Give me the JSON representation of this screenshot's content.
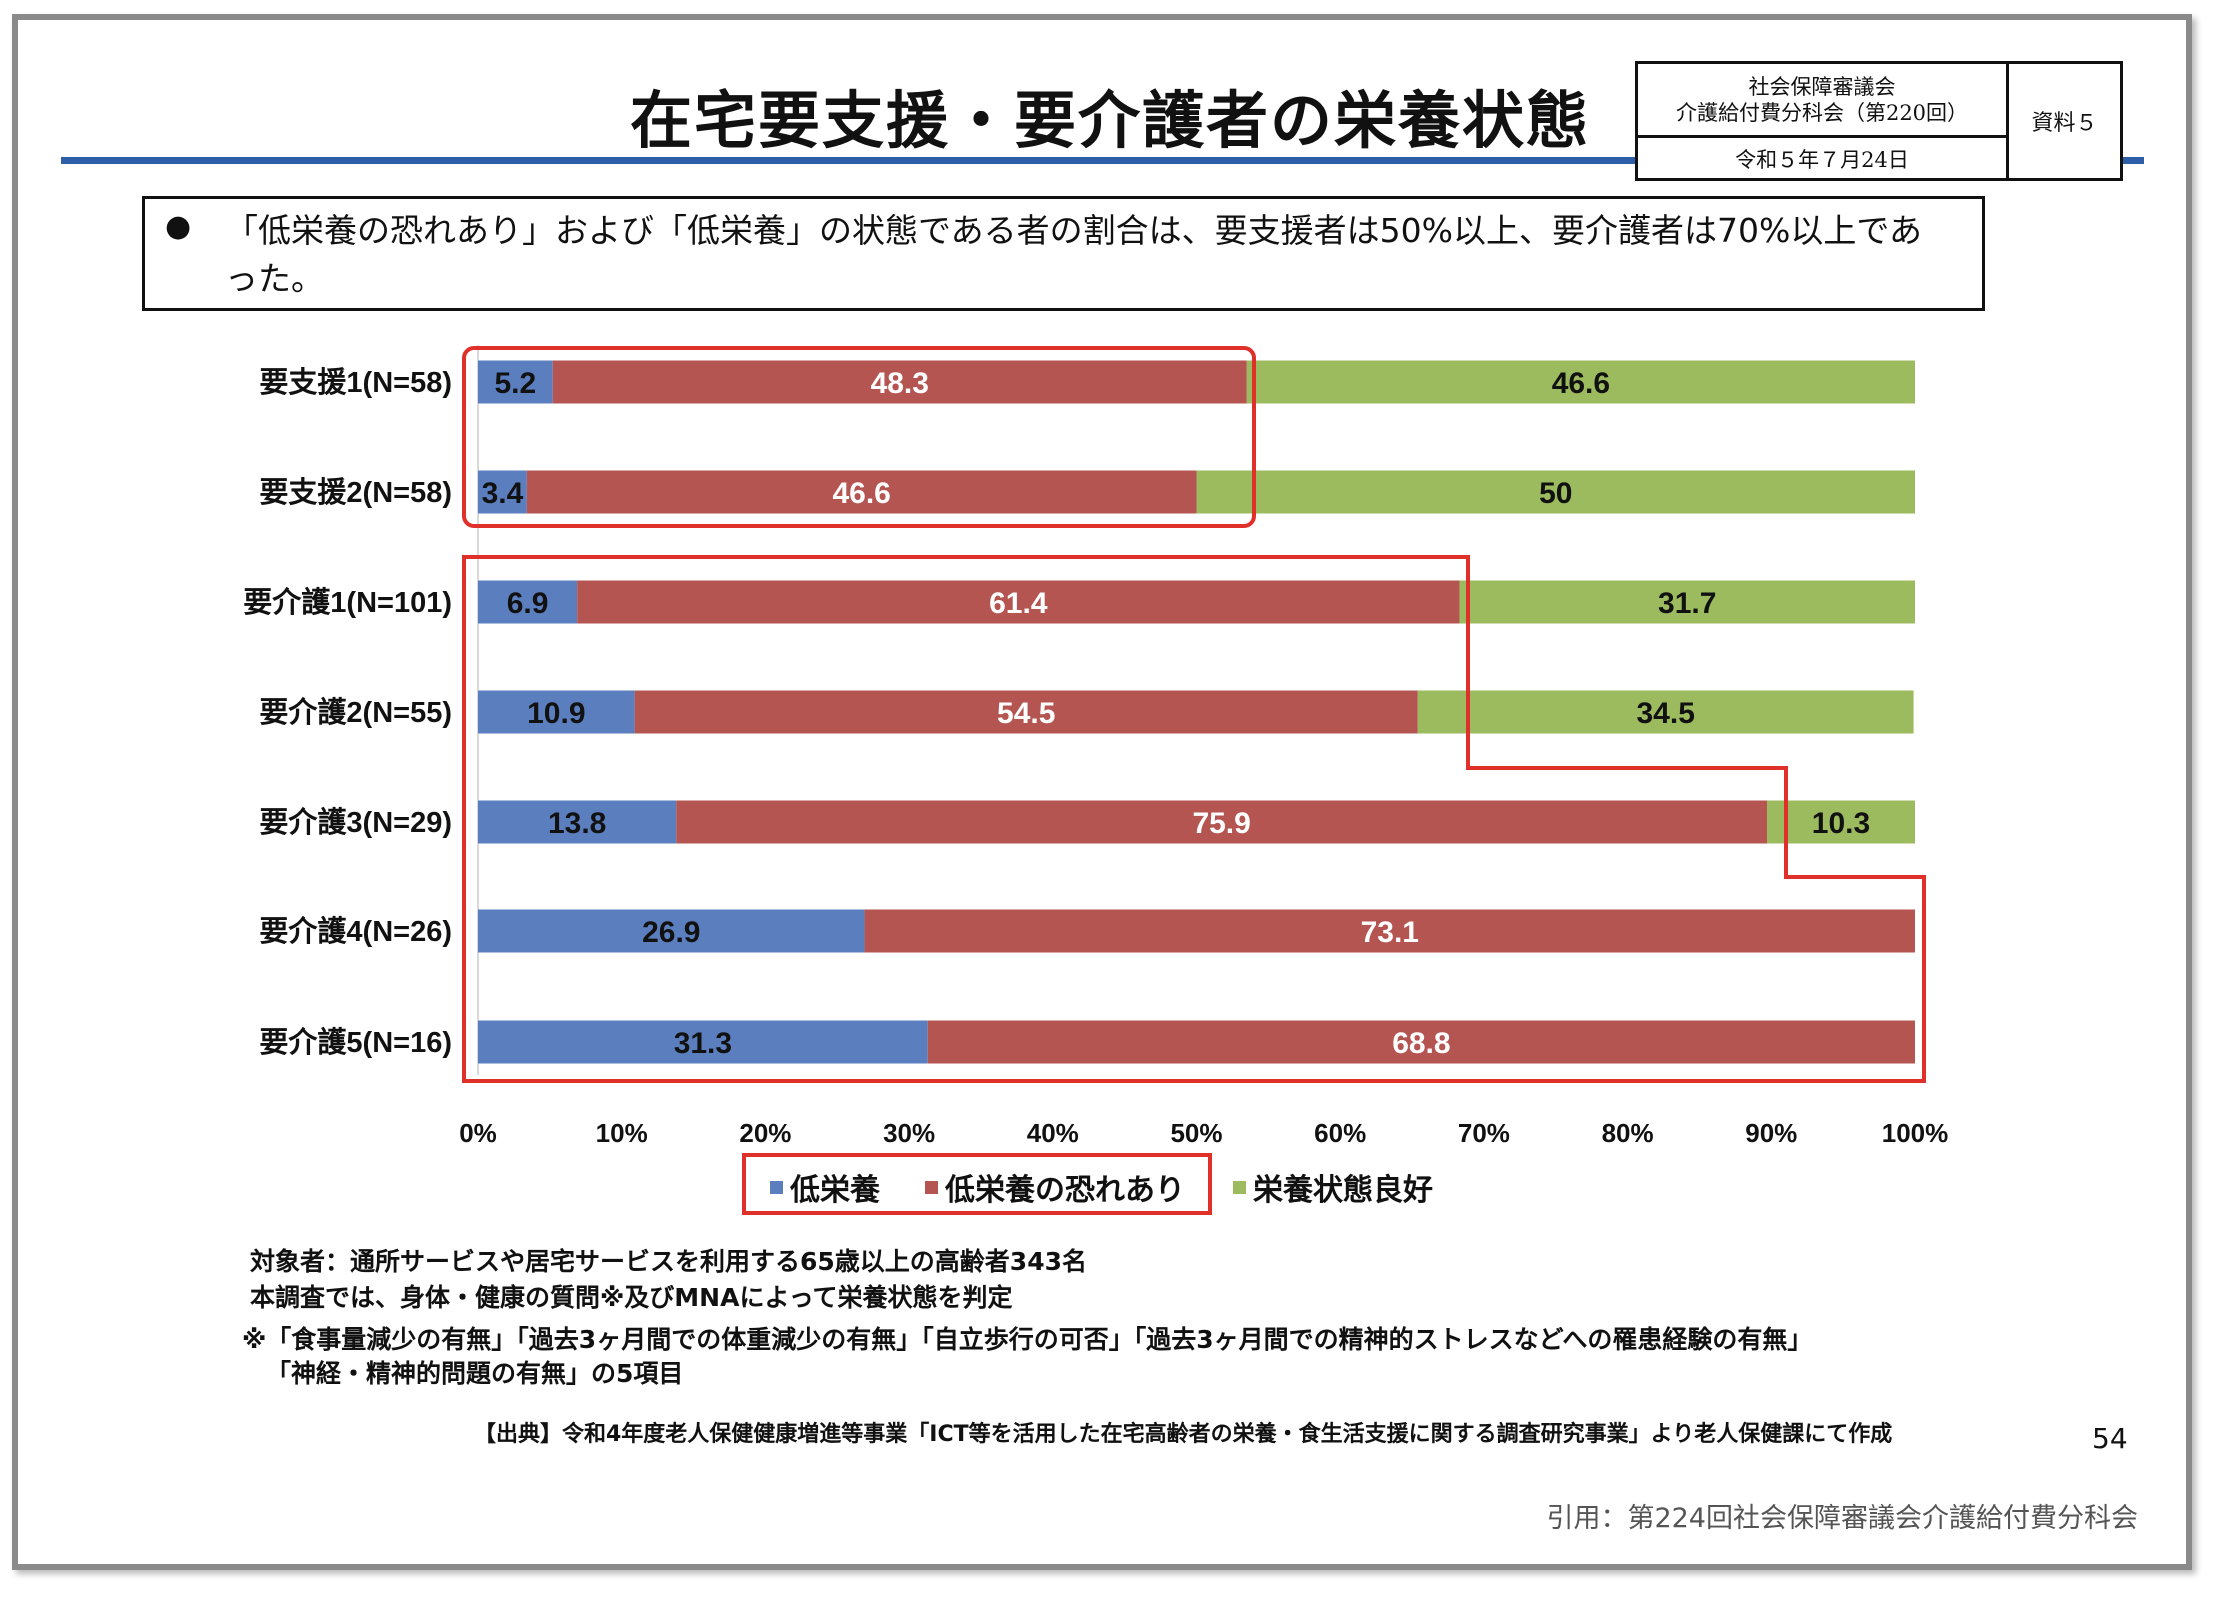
{
  "title": "在宅要支援・要介護者の栄養状態",
  "info_box": {
    "line1": "社会保障審議会",
    "line2": "介護給付費分科会（第220回）",
    "date": "令和５年７月24日",
    "doc": "資料５"
  },
  "summary": {
    "bullet": "●",
    "text": "「低栄養の恐れあり」および「低栄養」の状態である者の割合は、要支援者は50%以上、要介護者は70%以上であった。"
  },
  "colors": {
    "low": "#5B7FBE",
    "risk": "#B55552",
    "good": "#9CBB5E",
    "highlight": "#E0302A"
  },
  "chart_data": {
    "type": "bar",
    "orientation": "horizontal-stacked-100",
    "categories": [
      "要支援1(N=58)",
      "要支援2(N=58)",
      "要介護1(N=101)",
      "要介護2(N=55)",
      "要介護3(N=29)",
      "要介護4(N=26)",
      "要介護5(N=16)"
    ],
    "series": [
      {
        "name": "低栄養",
        "values": [
          5.2,
          3.4,
          6.9,
          10.9,
          13.8,
          26.9,
          31.3
        ]
      },
      {
        "name": "低栄養の恐れあり",
        "values": [
          48.3,
          46.6,
          61.4,
          54.5,
          75.9,
          73.1,
          68.8
        ]
      },
      {
        "name": "栄養状態良好",
        "values": [
          46.6,
          50,
          31.7,
          34.5,
          10.3,
          null,
          null
        ]
      }
    ],
    "xlim": [
      0,
      100
    ],
    "xticks": [
      "0%",
      "10%",
      "20%",
      "30%",
      "40%",
      "50%",
      "60%",
      "70%",
      "80%",
      "90%",
      "100%"
    ],
    "legend_position": "bottom"
  },
  "notes": [
    "対象者：通所サービスや居宅サービスを利用する65歳以上の高齢者343名",
    "本調査では、身体・健康の質問※及びMNAによって栄養状態を判定",
    "※「食事量減少の有無」「過去3ヶ月間での体重減少の有無」「自立歩行の可否」「過去3ヶ月間での精神的ストレスなどへの罹患経験の有無」",
    "「神経・精神的問題の有無」の5項目"
  ],
  "source": "【出典】令和4年度老人保健健康増進等事業「ICT等を活用した在宅高齢者の栄養・食生活支援に関する調査研究事業」より老人保健課にて作成",
  "page_number": "54",
  "citation": "引用：第224回社会保障審議会介護給付費分科会"
}
